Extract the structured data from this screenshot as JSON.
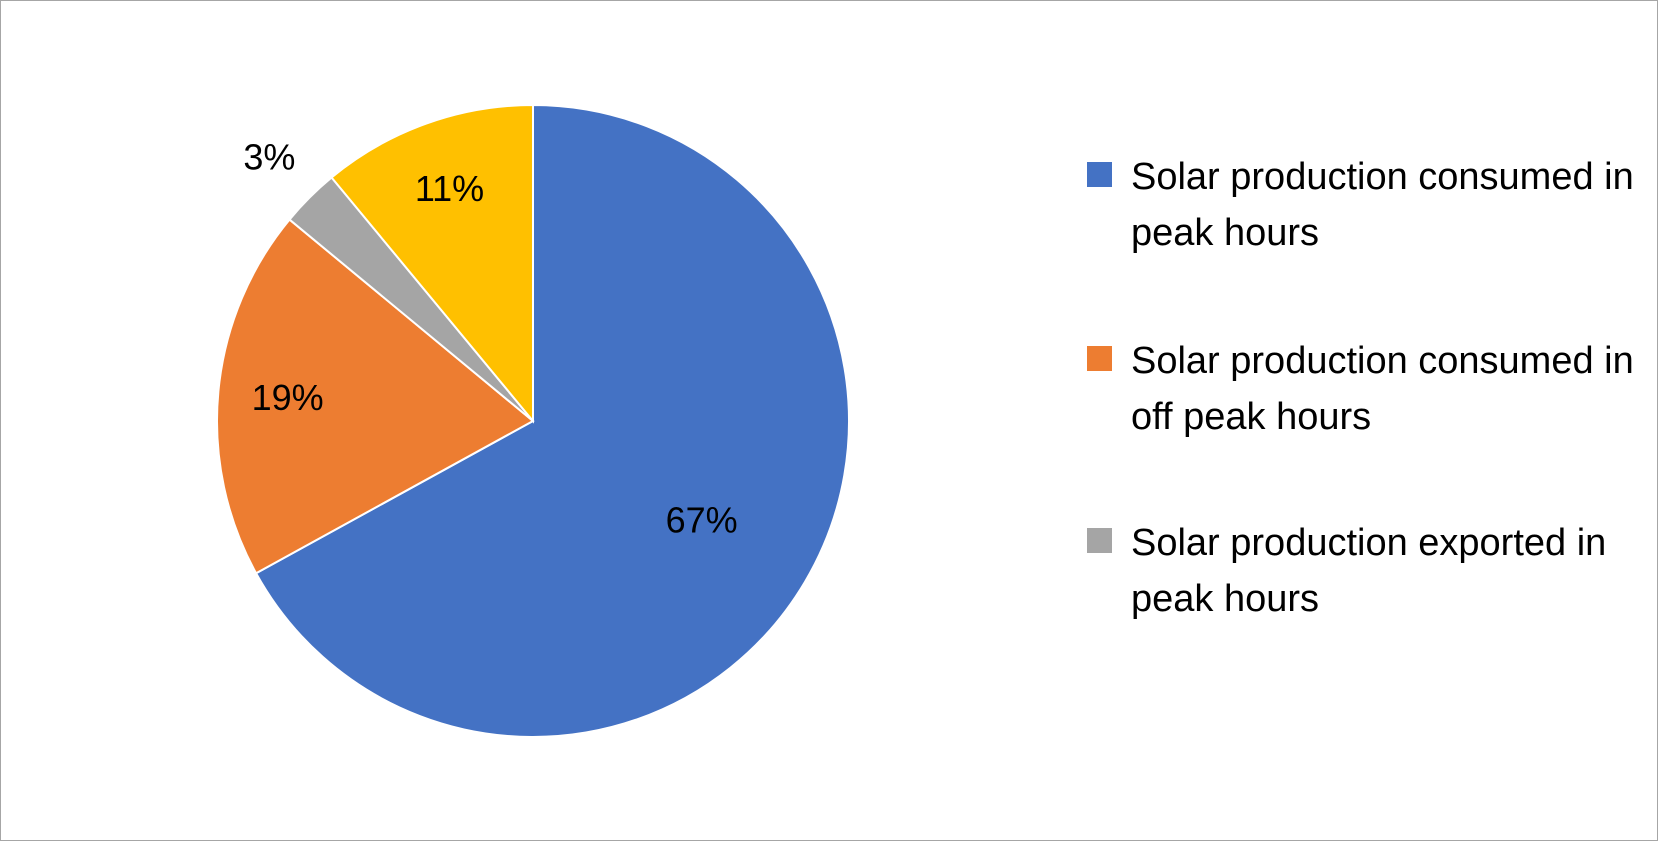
{
  "chart_data": {
    "type": "pie",
    "title": "",
    "slices": [
      {
        "label": "Solar production consumed in peak hours",
        "value": 67,
        "display": "67%",
        "color": "#4472C4"
      },
      {
        "label": "Solar production consumed in off peak hours",
        "value": 19,
        "display": "19%",
        "color": "#ED7D31"
      },
      {
        "label": "Solar production exported in peak hours",
        "value": 3,
        "display": "3%",
        "color": "#A5A5A5"
      },
      {
        "label": "",
        "value": 11,
        "display": "11%",
        "color": "#FFC000"
      }
    ],
    "legend_position": "right",
    "start_angle": "top",
    "direction": "clockwise"
  },
  "legend": {
    "items": [
      {
        "text": "Solar production consumed in peak hours",
        "color": "#4472C4"
      },
      {
        "text": "Solar production consumed in off peak hours",
        "color": "#ED7D31"
      },
      {
        "text": "Solar production exported in peak hours",
        "color": "#A5A5A5"
      }
    ]
  }
}
